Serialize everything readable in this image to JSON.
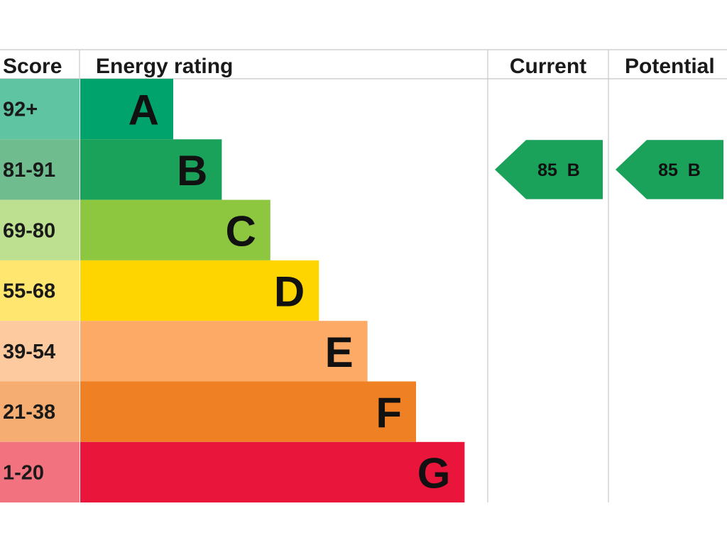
{
  "chart_data": {
    "type": "bar",
    "headers": {
      "score": "Score",
      "rating": "Energy rating",
      "current": "Current",
      "potential": "Potential"
    },
    "bands": [
      {
        "score_range": "92+",
        "letter": "A",
        "color": "#00a36c",
        "score_bg": "#5fc4a1"
      },
      {
        "score_range": "81-91",
        "letter": "B",
        "color": "#1aa15a",
        "score_bg": "#6fbd8e"
      },
      {
        "score_range": "69-80",
        "letter": "C",
        "color": "#8dc63f",
        "score_bg": "#bce08f"
      },
      {
        "score_range": "55-68",
        "letter": "D",
        "color": "#ffd500",
        "score_bg": "#ffe66e"
      },
      {
        "score_range": "39-54",
        "letter": "E",
        "color": "#fcaa65",
        "score_bg": "#fdcaa0"
      },
      {
        "score_range": "21-38",
        "letter": "F",
        "color": "#ef8023",
        "score_bg": "#f6ad72"
      },
      {
        "score_range": "1-20",
        "letter": "G",
        "color": "#e9153b",
        "score_bg": "#f2737f"
      }
    ],
    "current": {
      "score": 85,
      "letter": "B",
      "label": "85  B",
      "color": "#1aa15a"
    },
    "potential": {
      "score": 85,
      "letter": "B",
      "label": "85  B",
      "color": "#1aa15a"
    }
  }
}
